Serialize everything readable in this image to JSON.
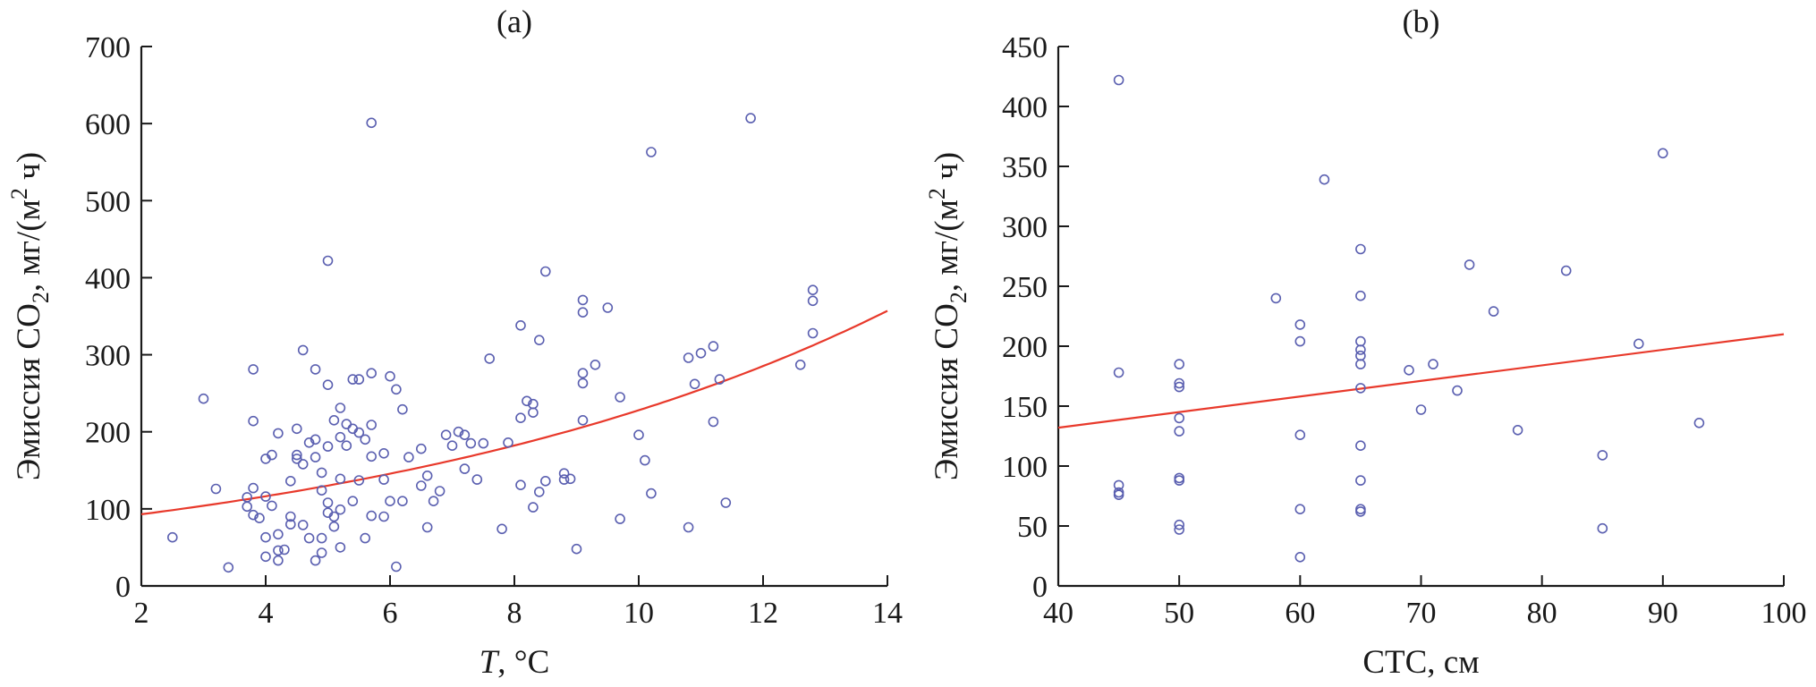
{
  "colors": {
    "points": "#5a5fb0",
    "fit": "#e8392b",
    "axis": "#1a1a1a"
  },
  "chart_data": [
    {
      "type": "scatter",
      "title": "(a)",
      "xlabel": {
        "italic": "T",
        "rest": ", °C"
      },
      "ylabel": {
        "pre": "Эмиссия CO",
        "sub": "2",
        "mid": ", мг/(м",
        "sup": "2",
        "post": " ч)"
      },
      "xlim": [
        2,
        14
      ],
      "ylim": [
        0,
        700
      ],
      "xticks": [
        "2",
        "4",
        "6",
        "8",
        "10",
        "12",
        "14"
      ],
      "yticks": [
        "0",
        "100",
        "200",
        "300",
        "400",
        "500",
        "600",
        "700"
      ],
      "grid": false,
      "fit": {
        "type": "exponential",
        "points": [
          [
            2,
            93
          ],
          [
            4,
            114
          ],
          [
            6,
            140
          ],
          [
            8,
            175
          ],
          [
            10,
            225
          ],
          [
            12,
            285
          ],
          [
            14,
            357
          ]
        ]
      },
      "points": [
        [
          2.5,
          63
        ],
        [
          3.0,
          243
        ],
        [
          3.2,
          126
        ],
        [
          3.4,
          24
        ],
        [
          3.7,
          115
        ],
        [
          3.7,
          103
        ],
        [
          3.8,
          214
        ],
        [
          3.8,
          281
        ],
        [
          3.8,
          127
        ],
        [
          3.8,
          92
        ],
        [
          3.9,
          88
        ],
        [
          4.0,
          165
        ],
        [
          4.0,
          116
        ],
        [
          4.0,
          63
        ],
        [
          4.0,
          38
        ],
        [
          4.1,
          170
        ],
        [
          4.1,
          104
        ],
        [
          4.2,
          198
        ],
        [
          4.2,
          67
        ],
        [
          4.2,
          46
        ],
        [
          4.2,
          33
        ],
        [
          4.3,
          47
        ],
        [
          4.4,
          136
        ],
        [
          4.4,
          90
        ],
        [
          4.4,
          80
        ],
        [
          4.5,
          204
        ],
        [
          4.5,
          170
        ],
        [
          4.5,
          165
        ],
        [
          4.6,
          306
        ],
        [
          4.6,
          158
        ],
        [
          4.6,
          79
        ],
        [
          4.7,
          186
        ],
        [
          4.7,
          62
        ],
        [
          4.8,
          281
        ],
        [
          4.8,
          190
        ],
        [
          4.8,
          167
        ],
        [
          4.8,
          33
        ],
        [
          4.9,
          147
        ],
        [
          4.9,
          124
        ],
        [
          4.9,
          62
        ],
        [
          4.9,
          43
        ],
        [
          5.0,
          422
        ],
        [
          5.0,
          261
        ],
        [
          5.0,
          181
        ],
        [
          5.0,
          108
        ],
        [
          5.0,
          95
        ],
        [
          5.1,
          215
        ],
        [
          5.1,
          90
        ],
        [
          5.1,
          77
        ],
        [
          5.2,
          231
        ],
        [
          5.2,
          193
        ],
        [
          5.2,
          139
        ],
        [
          5.2,
          99
        ],
        [
          5.2,
          50
        ],
        [
          5.3,
          210
        ],
        [
          5.3,
          182
        ],
        [
          5.4,
          268
        ],
        [
          5.4,
          204
        ],
        [
          5.4,
          110
        ],
        [
          5.5,
          268
        ],
        [
          5.5,
          199
        ],
        [
          5.5,
          137
        ],
        [
          5.6,
          190
        ],
        [
          5.6,
          62
        ],
        [
          5.7,
          601
        ],
        [
          5.7,
          276
        ],
        [
          5.7,
          209
        ],
        [
          5.7,
          168
        ],
        [
          5.7,
          91
        ],
        [
          5.9,
          172
        ],
        [
          5.9,
          138
        ],
        [
          5.9,
          90
        ],
        [
          6.0,
          272
        ],
        [
          6.0,
          110
        ],
        [
          6.1,
          255
        ],
        [
          6.1,
          25
        ],
        [
          6.2,
          229
        ],
        [
          6.2,
          110
        ],
        [
          6.3,
          167
        ],
        [
          6.5,
          178
        ],
        [
          6.5,
          130
        ],
        [
          6.6,
          143
        ],
        [
          6.6,
          76
        ],
        [
          6.7,
          110
        ],
        [
          6.8,
          123
        ],
        [
          6.9,
          196
        ],
        [
          7.0,
          182
        ],
        [
          7.1,
          200
        ],
        [
          7.2,
          196
        ],
        [
          7.2,
          152
        ],
        [
          7.3,
          185
        ],
        [
          7.4,
          138
        ],
        [
          7.5,
          185
        ],
        [
          7.6,
          295
        ],
        [
          7.8,
          74
        ],
        [
          7.9,
          186
        ],
        [
          8.1,
          338
        ],
        [
          8.1,
          218
        ],
        [
          8.1,
          131
        ],
        [
          8.2,
          240
        ],
        [
          8.3,
          236
        ],
        [
          8.3,
          225
        ],
        [
          8.3,
          102
        ],
        [
          8.4,
          319
        ],
        [
          8.4,
          122
        ],
        [
          8.5,
          408
        ],
        [
          8.5,
          136
        ],
        [
          8.8,
          146
        ],
        [
          8.8,
          138
        ],
        [
          8.9,
          139
        ],
        [
          9.0,
          48
        ],
        [
          9.1,
          371
        ],
        [
          9.1,
          355
        ],
        [
          9.1,
          276
        ],
        [
          9.1,
          263
        ],
        [
          9.1,
          215
        ],
        [
          9.3,
          287
        ],
        [
          9.5,
          361
        ],
        [
          9.7,
          245
        ],
        [
          9.7,
          87
        ],
        [
          10.0,
          196
        ],
        [
          10.1,
          163
        ],
        [
          10.2,
          563
        ],
        [
          10.2,
          120
        ],
        [
          10.8,
          296
        ],
        [
          10.8,
          76
        ],
        [
          10.9,
          262
        ],
        [
          11.0,
          302
        ],
        [
          11.2,
          311
        ],
        [
          11.2,
          213
        ],
        [
          11.3,
          268
        ],
        [
          11.4,
          108
        ],
        [
          11.8,
          607
        ],
        [
          12.6,
          287
        ],
        [
          12.8,
          384
        ],
        [
          12.8,
          370
        ],
        [
          12.8,
          328
        ]
      ]
    },
    {
      "type": "scatter",
      "title": "(b)",
      "xlabel": {
        "italic": "",
        "rest": "СТС, см"
      },
      "ylabel": {
        "pre": "Эмиссия CO",
        "sub": "2",
        "mid": ", мг/(м",
        "sup": "2",
        "post": " ч)"
      },
      "xlim": [
        40,
        100
      ],
      "ylim": [
        0,
        450
      ],
      "xticks": [
        "40",
        "50",
        "60",
        "70",
        "80",
        "90",
        "100"
      ],
      "yticks": [
        "0",
        "50",
        "100",
        "150",
        "200",
        "250",
        "300",
        "350",
        "400",
        "450"
      ],
      "grid": false,
      "fit": {
        "type": "linear",
        "points": [
          [
            40,
            132
          ],
          [
            100,
            210
          ]
        ]
      },
      "points": [
        [
          45,
          422
        ],
        [
          45,
          178
        ],
        [
          45,
          84
        ],
        [
          45,
          78
        ],
        [
          45,
          76
        ],
        [
          50,
          185
        ],
        [
          50,
          169
        ],
        [
          50,
          166
        ],
        [
          50,
          140
        ],
        [
          50,
          129
        ],
        [
          50,
          90
        ],
        [
          50,
          88
        ],
        [
          50,
          51
        ],
        [
          50,
          47
        ],
        [
          58,
          240
        ],
        [
          60,
          218
        ],
        [
          60,
          204
        ],
        [
          60,
          126
        ],
        [
          60,
          64
        ],
        [
          60,
          24
        ],
        [
          62,
          339
        ],
        [
          65,
          281
        ],
        [
          65,
          242
        ],
        [
          65,
          204
        ],
        [
          65,
          197
        ],
        [
          65,
          192
        ],
        [
          65,
          185
        ],
        [
          65,
          165
        ],
        [
          65,
          117
        ],
        [
          65,
          88
        ],
        [
          65,
          64
        ],
        [
          65,
          62
        ],
        [
          69,
          180
        ],
        [
          70,
          147
        ],
        [
          71,
          185
        ],
        [
          73,
          163
        ],
        [
          74,
          268
        ],
        [
          76,
          229
        ],
        [
          78,
          130
        ],
        [
          82,
          263
        ],
        [
          85,
          109
        ],
        [
          85,
          48
        ],
        [
          88,
          202
        ],
        [
          90,
          361
        ],
        [
          93,
          136
        ]
      ]
    }
  ]
}
